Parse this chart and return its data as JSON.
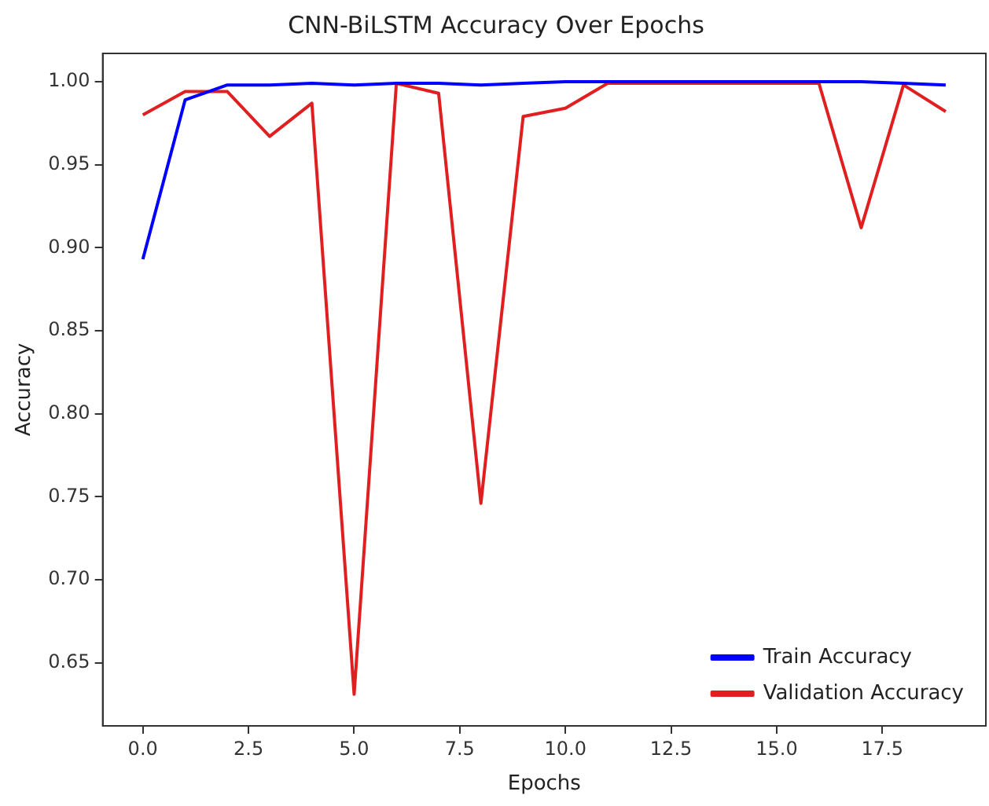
{
  "chart_data": {
    "type": "line",
    "title": "CNN-BiLSTM Accuracy Over Epochs",
    "xlabel": "Epochs",
    "ylabel": "Accuracy",
    "x": [
      0,
      1,
      2,
      3,
      4,
      5,
      6,
      7,
      8,
      9,
      10,
      11,
      12,
      13,
      14,
      15,
      16,
      17,
      18,
      19
    ],
    "series": [
      {
        "name": "Train Accuracy",
        "color": "#0000ff",
        "values": [
          0.893,
          0.989,
          0.998,
          0.998,
          0.999,
          0.998,
          0.999,
          0.999,
          0.998,
          0.999,
          1.0,
          1.0,
          1.0,
          1.0,
          1.0,
          1.0,
          1.0,
          1.0,
          0.999,
          0.998
        ]
      },
      {
        "name": "Validation Accuracy",
        "color": "#e02020",
        "values": [
          0.98,
          0.994,
          0.994,
          0.967,
          0.987,
          0.631,
          0.999,
          0.993,
          0.746,
          0.979,
          0.984,
          0.999,
          0.999,
          0.999,
          0.999,
          0.999,
          0.999,
          0.912,
          0.998,
          0.982
        ]
      }
    ],
    "xlim": [
      -0.95,
      19.95
    ],
    "ylim": [
      0.612,
      1.017
    ],
    "xticks": [
      {
        "value": 0,
        "label": "0.0"
      },
      {
        "value": 2.5,
        "label": "2.5"
      },
      {
        "value": 5,
        "label": "5.0"
      },
      {
        "value": 7.5,
        "label": "7.5"
      },
      {
        "value": 10,
        "label": "10.0"
      },
      {
        "value": 12.5,
        "label": "12.5"
      },
      {
        "value": 15,
        "label": "15.0"
      },
      {
        "value": 17.5,
        "label": "17.5"
      }
    ],
    "yticks": [
      {
        "value": 0.65,
        "label": "0.65"
      },
      {
        "value": 0.7,
        "label": "0.70"
      },
      {
        "value": 0.75,
        "label": "0.75"
      },
      {
        "value": 0.8,
        "label": "0.80"
      },
      {
        "value": 0.85,
        "label": "0.85"
      },
      {
        "value": 0.9,
        "label": "0.90"
      },
      {
        "value": 0.95,
        "label": "0.95"
      },
      {
        "value": 1.0,
        "label": "1.00"
      }
    ],
    "grid": false,
    "legend": "bottom right",
    "marker": "none",
    "line_style": "solid"
  }
}
